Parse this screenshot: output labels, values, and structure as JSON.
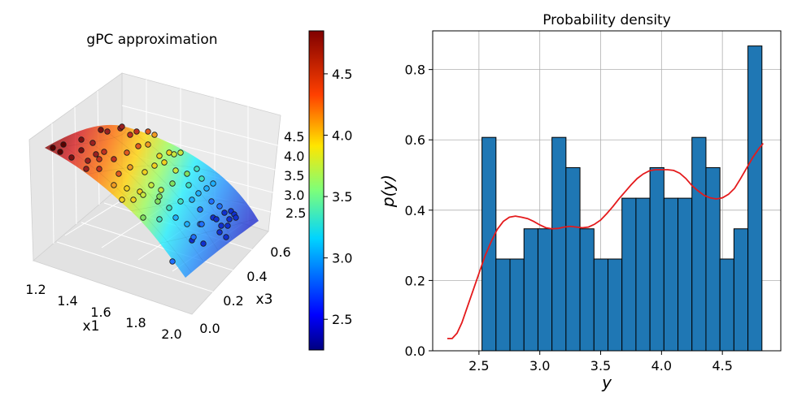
{
  "chart_data": [
    {
      "type": "surface3d",
      "title": "gPC approximation",
      "xlabel": "x1",
      "ylabel": "x3",
      "zlabel": "",
      "xticks": [
        "1.2",
        "1.4",
        "1.6",
        "1.8",
        "2.0"
      ],
      "yticks": [
        "0.0",
        "0.2",
        "0.4",
        "0.6"
      ],
      "zticks": [
        "2.5",
        "3.0",
        "3.5",
        "4.0",
        "4.5"
      ],
      "colormap": "jet",
      "colorbar": {
        "range": [
          2.25,
          4.85
        ],
        "ticks": [
          "2.5",
          "3.0",
          "3.5",
          "4.0",
          "4.5"
        ],
        "tick_values": [
          2.5,
          3.0,
          3.5,
          4.0,
          4.5
        ]
      }
    },
    {
      "type": "histogram",
      "title": "Probability density",
      "xlabel": "y",
      "ylabel": "p(y)",
      "xlim": [
        2.12,
        4.98
      ],
      "ylim": [
        0,
        0.91
      ],
      "xticks": [
        "2.5",
        "3.0",
        "3.5",
        "4.0",
        "4.5"
      ],
      "xtick_values": [
        2.5,
        3.0,
        3.5,
        4.0,
        4.5
      ],
      "yticks": [
        "0.0",
        "0.2",
        "0.4",
        "0.6",
        "0.8"
      ],
      "ytick_values": [
        0.0,
        0.2,
        0.4,
        0.6,
        0.8
      ],
      "grid": true,
      "bar_color": "#1f77b4",
      "bin_edges": [
        2.525,
        2.64,
        2.755,
        2.87,
        2.985,
        3.1,
        3.215,
        3.33,
        3.445,
        3.56,
        3.675,
        3.79,
        3.905,
        4.02,
        4.135,
        4.25,
        4.365,
        4.48,
        4.595,
        4.71,
        4.825
      ],
      "values": [
        0.607,
        0.261,
        0.261,
        0.347,
        0.347,
        0.607,
        0.521,
        0.347,
        0.261,
        0.261,
        0.434,
        0.434,
        0.521,
        0.434,
        0.434,
        0.607,
        0.521,
        0.261,
        0.347,
        0.867
      ],
      "kde": {
        "color": "#e41a1c",
        "x": [
          2.24,
          2.28,
          2.32,
          2.36,
          2.4,
          2.45,
          2.5,
          2.55,
          2.6,
          2.65,
          2.7,
          2.75,
          2.8,
          2.85,
          2.9,
          2.95,
          3.0,
          3.05,
          3.1,
          3.15,
          3.2,
          3.25,
          3.3,
          3.35,
          3.4,
          3.45,
          3.5,
          3.55,
          3.6,
          3.65,
          3.7,
          3.75,
          3.8,
          3.85,
          3.9,
          3.95,
          4.0,
          4.05,
          4.1,
          4.15,
          4.2,
          4.25,
          4.3,
          4.35,
          4.4,
          4.45,
          4.5,
          4.55,
          4.6,
          4.65,
          4.7,
          4.75,
          4.8,
          4.835
        ],
        "y": [
          0.035,
          0.035,
          0.05,
          0.08,
          0.12,
          0.17,
          0.22,
          0.27,
          0.31,
          0.345,
          0.368,
          0.38,
          0.383,
          0.38,
          0.376,
          0.368,
          0.358,
          0.35,
          0.347,
          0.348,
          0.352,
          0.354,
          0.352,
          0.35,
          0.352,
          0.36,
          0.372,
          0.39,
          0.41,
          0.432,
          0.452,
          0.472,
          0.49,
          0.503,
          0.512,
          0.515,
          0.515,
          0.515,
          0.513,
          0.505,
          0.49,
          0.47,
          0.455,
          0.442,
          0.435,
          0.432,
          0.435,
          0.445,
          0.462,
          0.49,
          0.52,
          0.55,
          0.575,
          0.59
        ]
      }
    }
  ]
}
